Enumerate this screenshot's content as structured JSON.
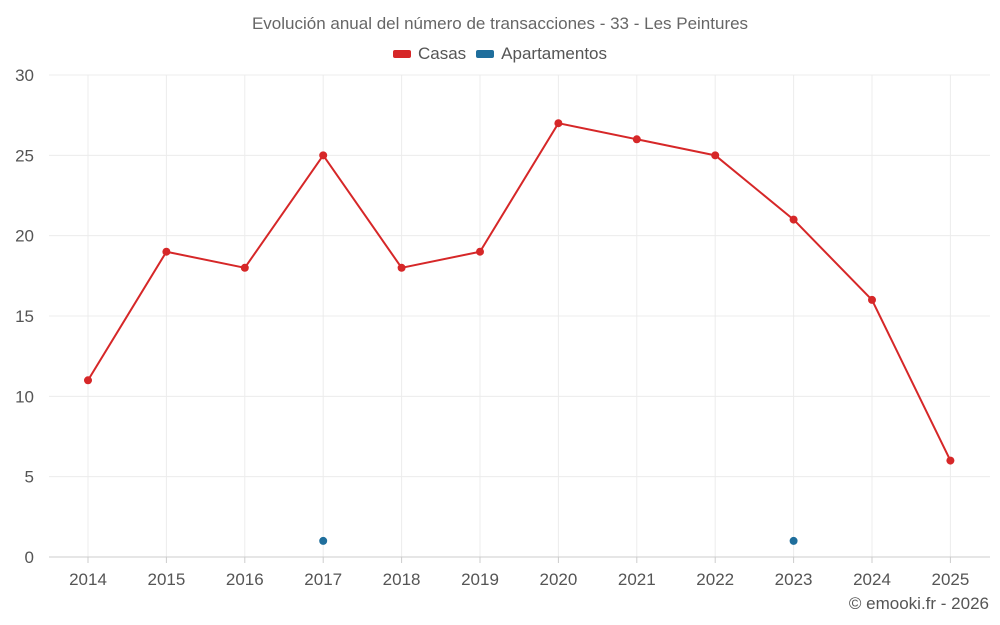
{
  "chart_data": {
    "type": "line",
    "title": "Evolución anual del número de transacciones - 33 - Les Peintures",
    "categories": [
      "2014",
      "2015",
      "2016",
      "2017",
      "2018",
      "2019",
      "2020",
      "2021",
      "2022",
      "2023",
      "2024",
      "2025"
    ],
    "series": [
      {
        "name": "Casas",
        "color": "#d62728",
        "values": [
          11,
          19,
          18,
          25,
          18,
          19,
          27,
          26,
          25,
          21,
          16,
          6
        ]
      },
      {
        "name": "Apartamentos",
        "color": "#1f6e9c",
        "values": [
          null,
          null,
          null,
          1,
          null,
          null,
          null,
          null,
          null,
          1,
          null,
          null
        ]
      }
    ],
    "ylim": [
      0,
      30
    ],
    "yticks": [
      0,
      5,
      10,
      15,
      20,
      25,
      30
    ],
    "xlabel": "",
    "ylabel": "",
    "grid": true,
    "legend": "top-center"
  },
  "credit": "© emooki.fr - 2026"
}
